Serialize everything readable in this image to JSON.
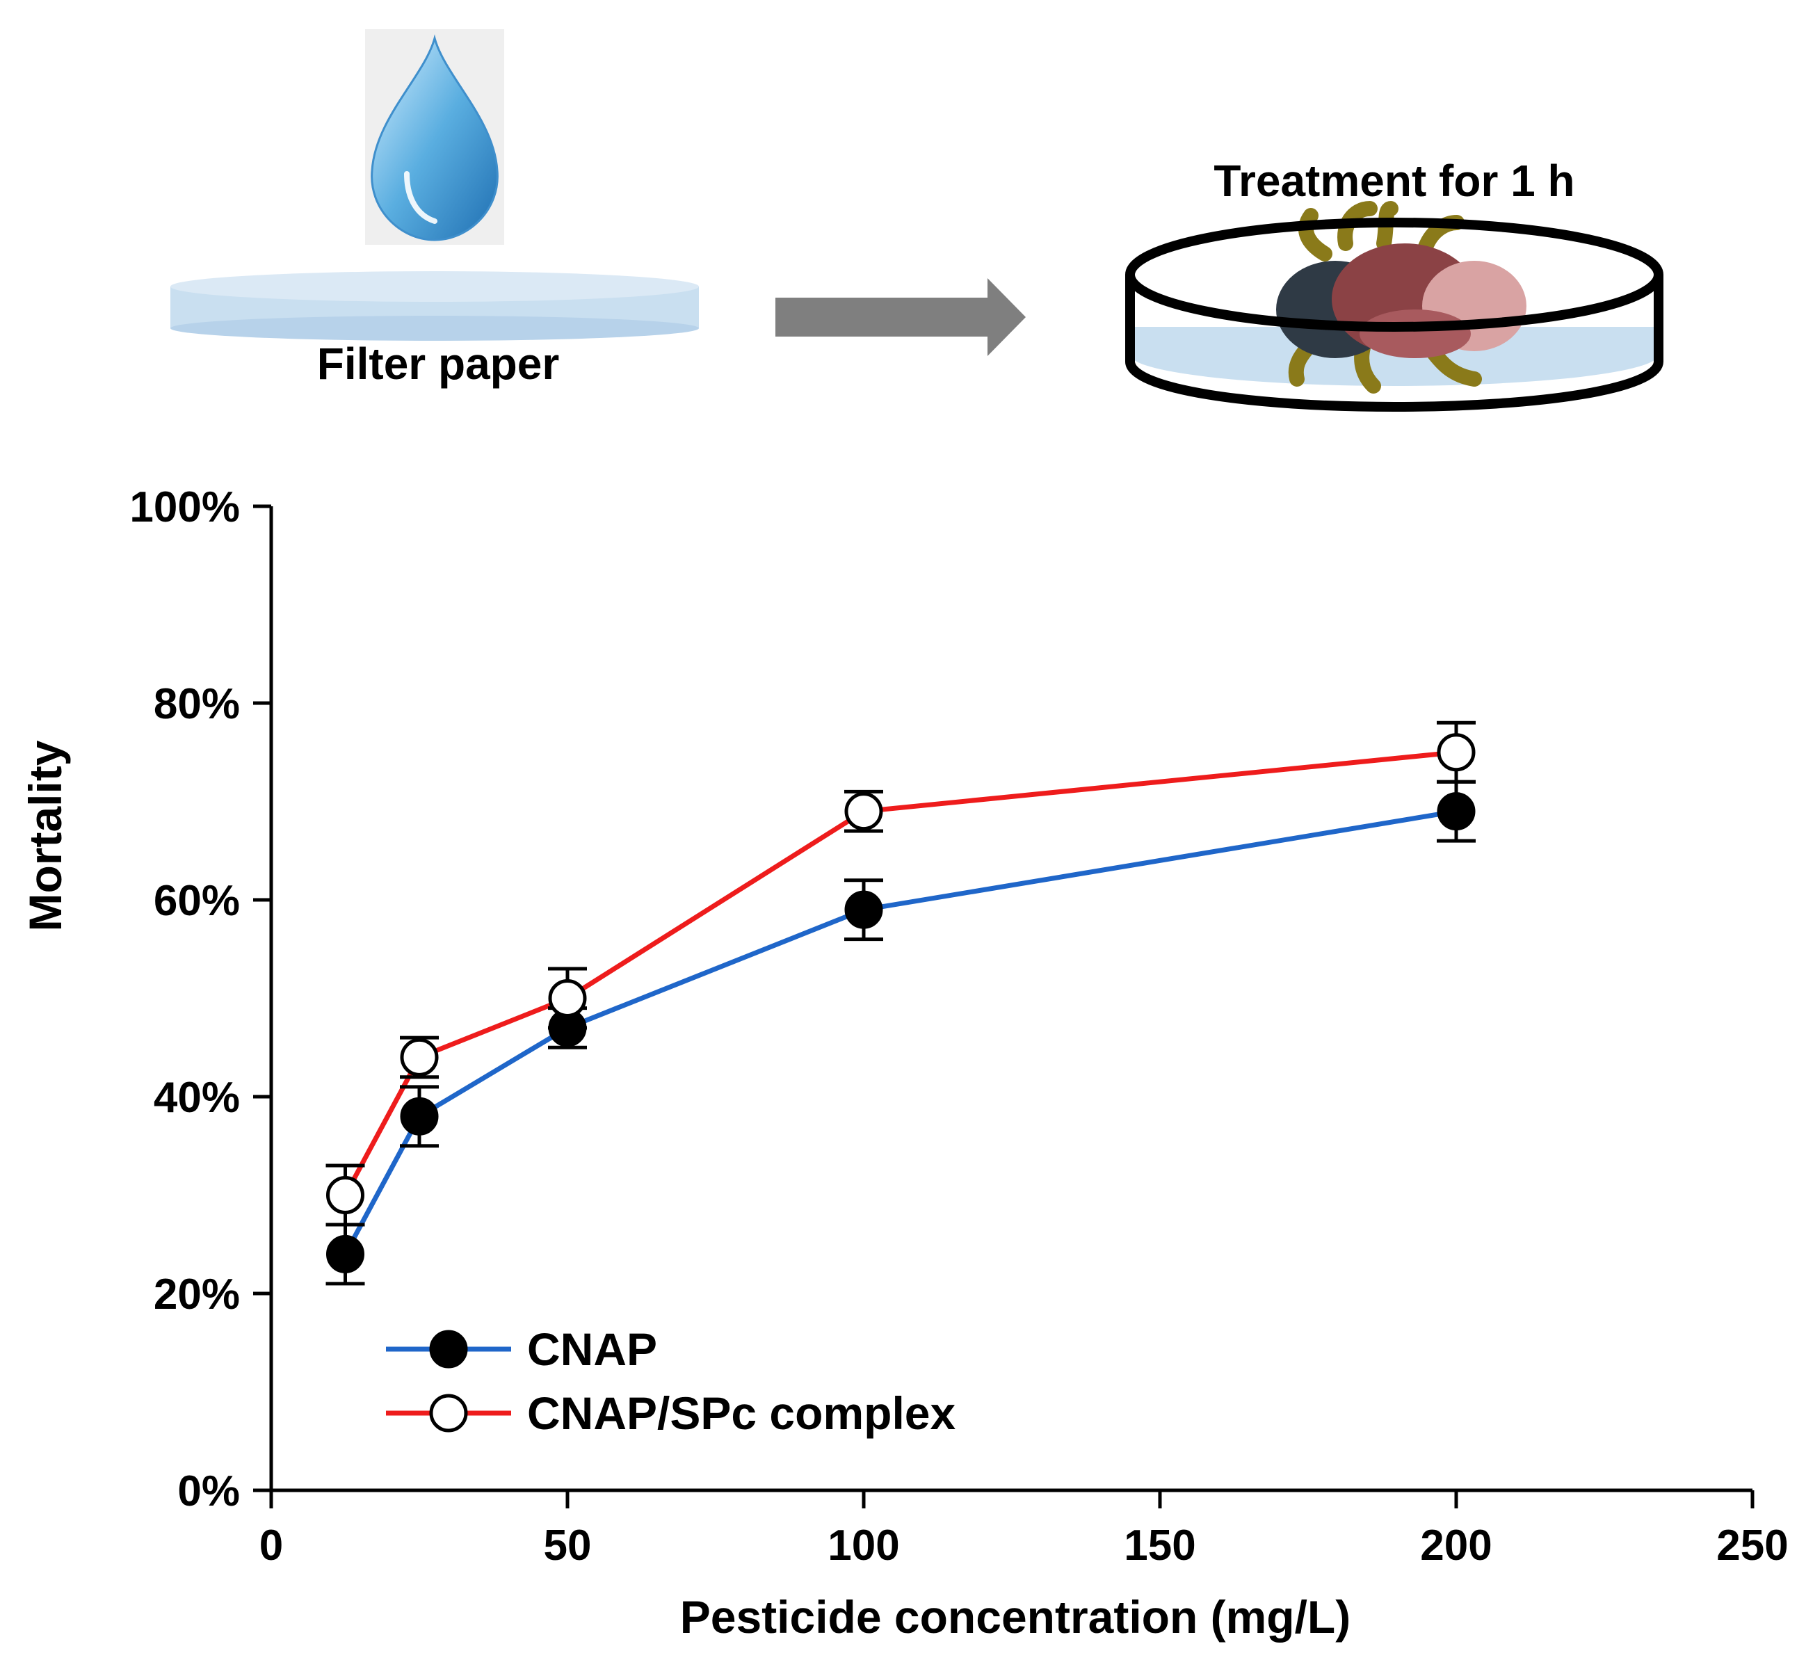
{
  "schematic": {
    "step1_label": "Filter paper",
    "step2_label": "Treatment for 1 h",
    "droplet_icon": "water-drop-icon",
    "arrow_icon": "right-arrow-icon",
    "dish_icon": "petri-dish-icon",
    "insect_icon": "mite-icon",
    "colors": {
      "paper": "#c9dff0",
      "arrow": "#7f7f7f",
      "drop": "#5aaee0",
      "insect_body_dark": "#2f3a45",
      "insect_body_red": "#8b4245",
      "insect_body_pink": "#d9a3a3",
      "insect_legs": "#8a7a1a"
    }
  },
  "chart_data": {
    "type": "line",
    "title": "",
    "xlabel": "Pesticide concentration (mg/L)",
    "ylabel": "Mortality",
    "xlim": [
      0,
      250
    ],
    "ylim": [
      0,
      100
    ],
    "x_ticks": [
      0,
      50,
      100,
      150,
      200,
      250
    ],
    "x_tick_labels": [
      "0",
      "50",
      "100",
      "150",
      "200",
      "250"
    ],
    "y_ticks": [
      0,
      20,
      40,
      60,
      80,
      100
    ],
    "y_tick_labels": [
      "0%",
      "20%",
      "40%",
      "60%",
      "80%",
      "100%"
    ],
    "grid": false,
    "legend_position": "bottom-left",
    "series": [
      {
        "name": "CNAP",
        "color": "#1f66c9",
        "marker": "filled-circle",
        "x": [
          12.5,
          25,
          50,
          100,
          200
        ],
        "values": [
          24,
          38,
          47,
          59,
          69
        ],
        "errors": [
          3,
          3,
          2,
          3,
          3
        ]
      },
      {
        "name": "CNAP/SPc complex",
        "color": "#ee1c1c",
        "marker": "open-circle",
        "x": [
          12.5,
          25,
          50,
          100,
          200
        ],
        "values": [
          30,
          44,
          50,
          69,
          75
        ],
        "errors": [
          3,
          2,
          3,
          2,
          3
        ]
      }
    ]
  }
}
